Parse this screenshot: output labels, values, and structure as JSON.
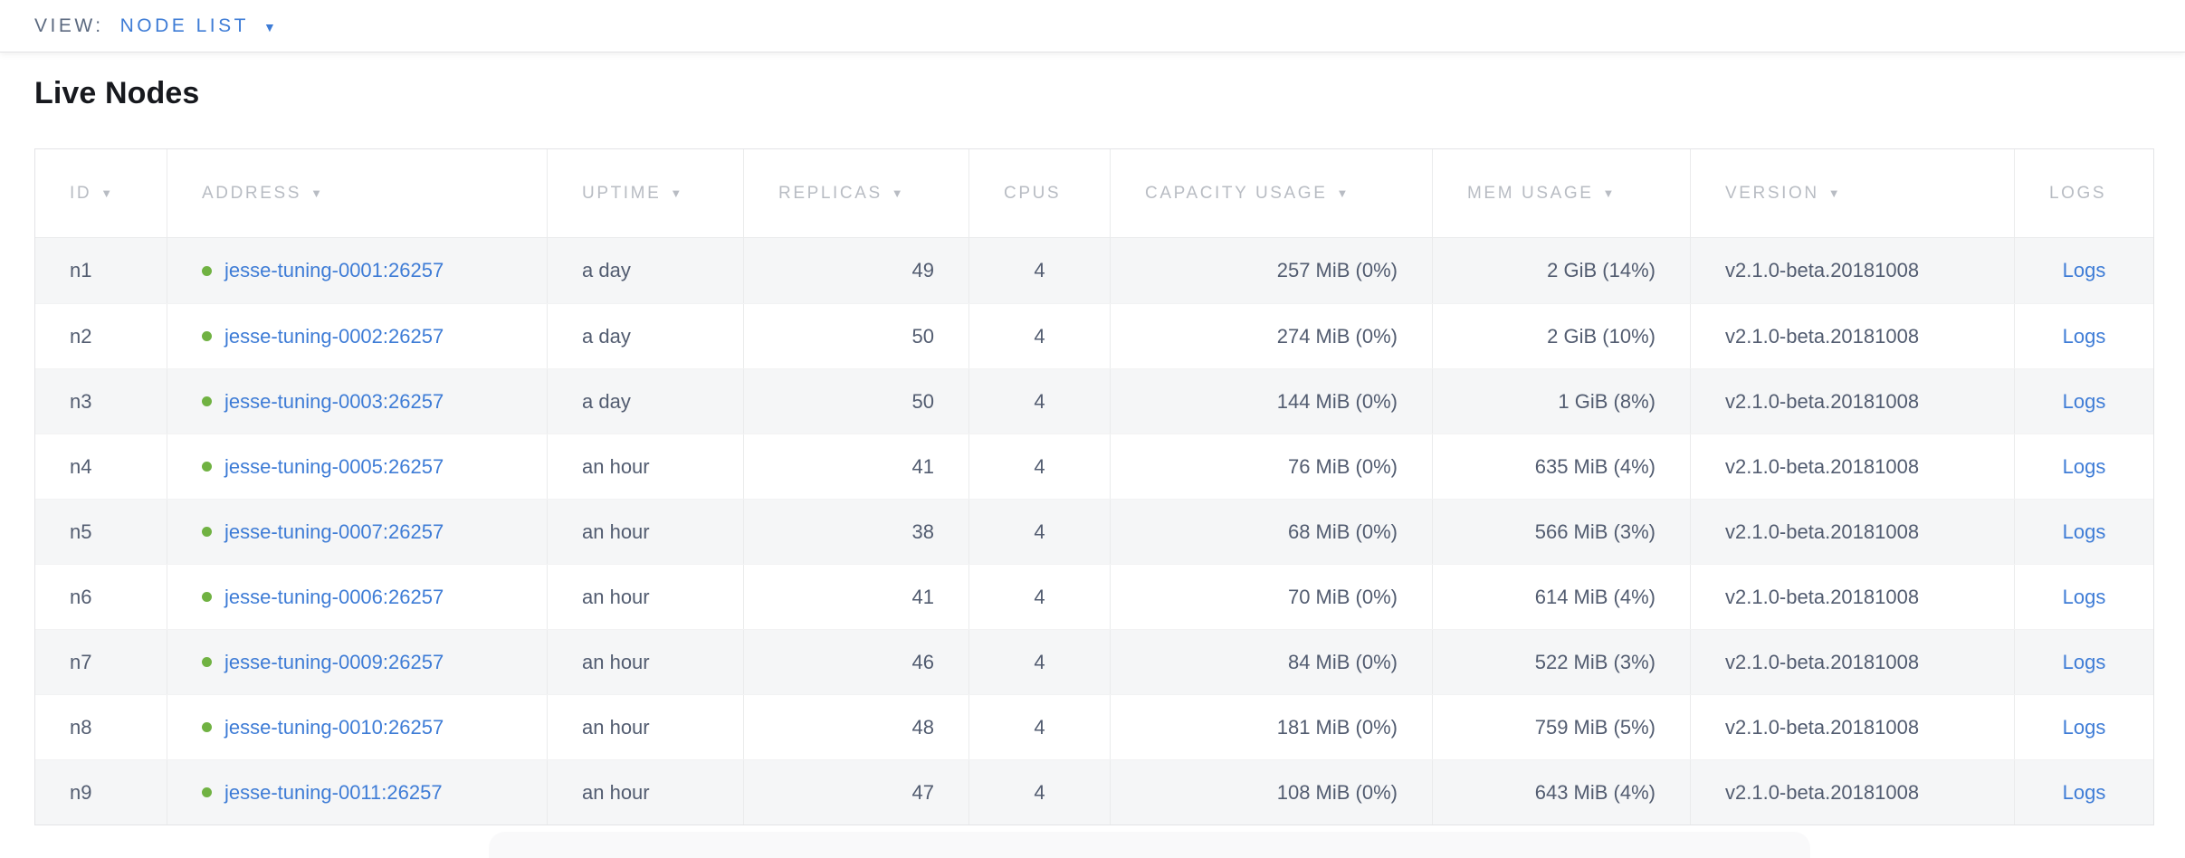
{
  "view_bar": {
    "label": "VIEW:",
    "selected": "NODE LIST"
  },
  "page": {
    "title": "Live Nodes"
  },
  "icons": {
    "sort_desc": "▼",
    "dropdown_caret": "▼"
  },
  "colors": {
    "link_blue": "#3e7cd6",
    "status_dot_green": "#70b242",
    "header_text_gray": "#b8bcc3",
    "body_text_slate": "#525c70",
    "row_stripe": "#f5f6f7"
  },
  "table": {
    "columns": [
      {
        "key": "id",
        "label": "ID",
        "sortable": true
      },
      {
        "key": "address",
        "label": "ADDRESS",
        "sortable": true
      },
      {
        "key": "uptime",
        "label": "UPTIME",
        "sortable": true
      },
      {
        "key": "replicas",
        "label": "REPLICAS",
        "sortable": true
      },
      {
        "key": "cpus",
        "label": "CPUS",
        "sortable": false
      },
      {
        "key": "capacity",
        "label": "CAPACITY USAGE",
        "sortable": true
      },
      {
        "key": "mem",
        "label": "MEM USAGE",
        "sortable": true
      },
      {
        "key": "version",
        "label": "VERSION",
        "sortable": true
      },
      {
        "key": "logs",
        "label": "LOGS",
        "sortable": false
      }
    ],
    "rows": [
      {
        "id": "n1",
        "address": "jesse-tuning-0001:26257",
        "uptime": "a day",
        "replicas": "49",
        "cpus": "4",
        "capacity": "257 MiB (0%)",
        "mem": "2 GiB (14%)",
        "version": "v2.1.0-beta.20181008",
        "logs": "Logs"
      },
      {
        "id": "n2",
        "address": "jesse-tuning-0002:26257",
        "uptime": "a day",
        "replicas": "50",
        "cpus": "4",
        "capacity": "274 MiB (0%)",
        "mem": "2 GiB (10%)",
        "version": "v2.1.0-beta.20181008",
        "logs": "Logs"
      },
      {
        "id": "n3",
        "address": "jesse-tuning-0003:26257",
        "uptime": "a day",
        "replicas": "50",
        "cpus": "4",
        "capacity": "144 MiB (0%)",
        "mem": "1 GiB (8%)",
        "version": "v2.1.0-beta.20181008",
        "logs": "Logs"
      },
      {
        "id": "n4",
        "address": "jesse-tuning-0005:26257",
        "uptime": "an hour",
        "replicas": "41",
        "cpus": "4",
        "capacity": "76 MiB (0%)",
        "mem": "635 MiB (4%)",
        "version": "v2.1.0-beta.20181008",
        "logs": "Logs"
      },
      {
        "id": "n5",
        "address": "jesse-tuning-0007:26257",
        "uptime": "an hour",
        "replicas": "38",
        "cpus": "4",
        "capacity": "68 MiB (0%)",
        "mem": "566 MiB (3%)",
        "version": "v2.1.0-beta.20181008",
        "logs": "Logs"
      },
      {
        "id": "n6",
        "address": "jesse-tuning-0006:26257",
        "uptime": "an hour",
        "replicas": "41",
        "cpus": "4",
        "capacity": "70 MiB (0%)",
        "mem": "614 MiB (4%)",
        "version": "v2.1.0-beta.20181008",
        "logs": "Logs"
      },
      {
        "id": "n7",
        "address": "jesse-tuning-0009:26257",
        "uptime": "an hour",
        "replicas": "46",
        "cpus": "4",
        "capacity": "84 MiB (0%)",
        "mem": "522 MiB (3%)",
        "version": "v2.1.0-beta.20181008",
        "logs": "Logs"
      },
      {
        "id": "n8",
        "address": "jesse-tuning-0010:26257",
        "uptime": "an hour",
        "replicas": "48",
        "cpus": "4",
        "capacity": "181 MiB (0%)",
        "mem": "759 MiB (5%)",
        "version": "v2.1.0-beta.20181008",
        "logs": "Logs"
      },
      {
        "id": "n9",
        "address": "jesse-tuning-0011:26257",
        "uptime": "an hour",
        "replicas": "47",
        "cpus": "4",
        "capacity": "108 MiB (0%)",
        "mem": "643 MiB (4%)",
        "version": "v2.1.0-beta.20181008",
        "logs": "Logs"
      }
    ]
  }
}
